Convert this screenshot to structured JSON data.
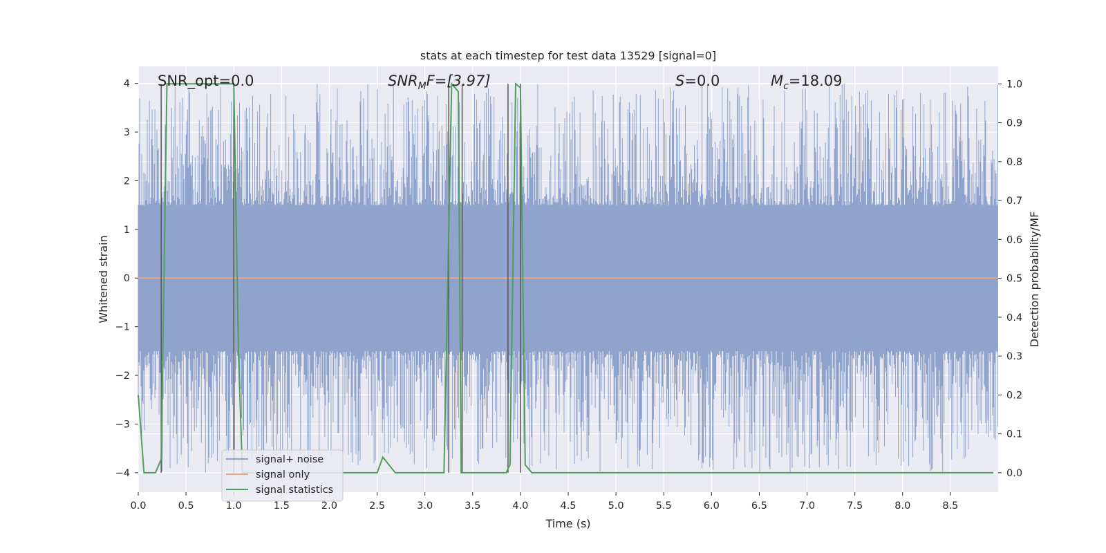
{
  "chart_data": {
    "type": "line",
    "title": "stats at each timestep for test data 13529 [signal=0]",
    "xlabel": "Time (s)",
    "ylabel": "Whitened strain",
    "ylabel_right": "Detection probability/MF",
    "xlim": [
      0.0,
      9.0
    ],
    "ylim": [
      -4.4,
      4.35
    ],
    "ylim_right": [
      -0.05,
      1.045
    ],
    "x_ticks": [
      0.0,
      0.5,
      1.0,
      1.5,
      2.0,
      2.5,
      3.0,
      3.5,
      4.0,
      4.5,
      5.0,
      5.5,
      6.0,
      6.5,
      7.0,
      7.5,
      8.0,
      8.5
    ],
    "x_tick_labels": [
      "0.0",
      "0.5",
      "1.0",
      "1.5",
      "2.0",
      "2.5",
      "3.0",
      "3.5",
      "4.0",
      "4.5",
      "5.0",
      "5.5",
      "6.0",
      "6.5",
      "7.0",
      "7.5",
      "8.0",
      "8.5"
    ],
    "y_ticks": [
      -4,
      -3,
      -2,
      -1,
      0,
      1,
      2,
      3,
      4
    ],
    "y_tick_labels": [
      "−4",
      "−3",
      "−2",
      "−1",
      "0",
      "1",
      "2",
      "3",
      "4"
    ],
    "y_ticks_right": [
      0.0,
      0.1,
      0.2,
      0.3,
      0.4,
      0.5,
      0.6,
      0.7,
      0.8,
      0.9,
      1.0
    ],
    "y_tick_labels_right": [
      "0.0",
      "0.1",
      "0.2",
      "0.3",
      "0.4",
      "0.5",
      "0.6",
      "0.7",
      "0.8",
      "0.9",
      "1.0"
    ],
    "grid": true,
    "legend_location": "lower-left",
    "annotations": {
      "snr_opt": "SNR_opt=0.0",
      "snr_mf_sym": "SNR",
      "snr_mf_sub": "M",
      "snr_mf_rest": "F=[3.97]",
      "s_sym": "S",
      "s_rest": "=0.0",
      "mc_sym": "M",
      "mc_sub": "c",
      "mc_rest": "=18.09"
    },
    "series": [
      {
        "name": "signal+ noise",
        "color": "#8fa3cc",
        "kind": "noise",
        "envelope": {
          "core_abs": 1.5,
          "peak_abs_max": 4.0,
          "sample_rate_hz": 2048,
          "duration_s": 9.0
        }
      },
      {
        "name": "signal only",
        "color": "#e8a888",
        "x": [
          0.0,
          9.0
        ],
        "y": [
          0.0,
          0.0
        ]
      },
      {
        "name": "signal statistics",
        "color": "#4f9e5b",
        "axis": "right",
        "x": [
          0.0,
          0.06,
          0.18,
          0.24,
          0.3,
          1.0,
          1.05,
          1.09,
          2.5,
          2.56,
          2.69,
          3.2,
          3.28,
          3.35,
          3.38,
          3.45,
          3.85,
          3.89,
          3.95,
          4.0,
          4.05,
          4.12,
          8.95
        ],
        "y": [
          0.2,
          0.0,
          0.0,
          0.035,
          1.0,
          1.0,
          0.3,
          0.0,
          0.0,
          0.04,
          0.0,
          0.0,
          1.0,
          0.98,
          0.0,
          0.0,
          0.0,
          0.02,
          1.0,
          0.99,
          0.02,
          0.0,
          0.0
        ]
      }
    ],
    "vertical_markers": {
      "color": "#555555",
      "x": [
        0.24,
        1.0,
        3.25,
        3.39,
        3.87,
        4.0
      ]
    }
  }
}
